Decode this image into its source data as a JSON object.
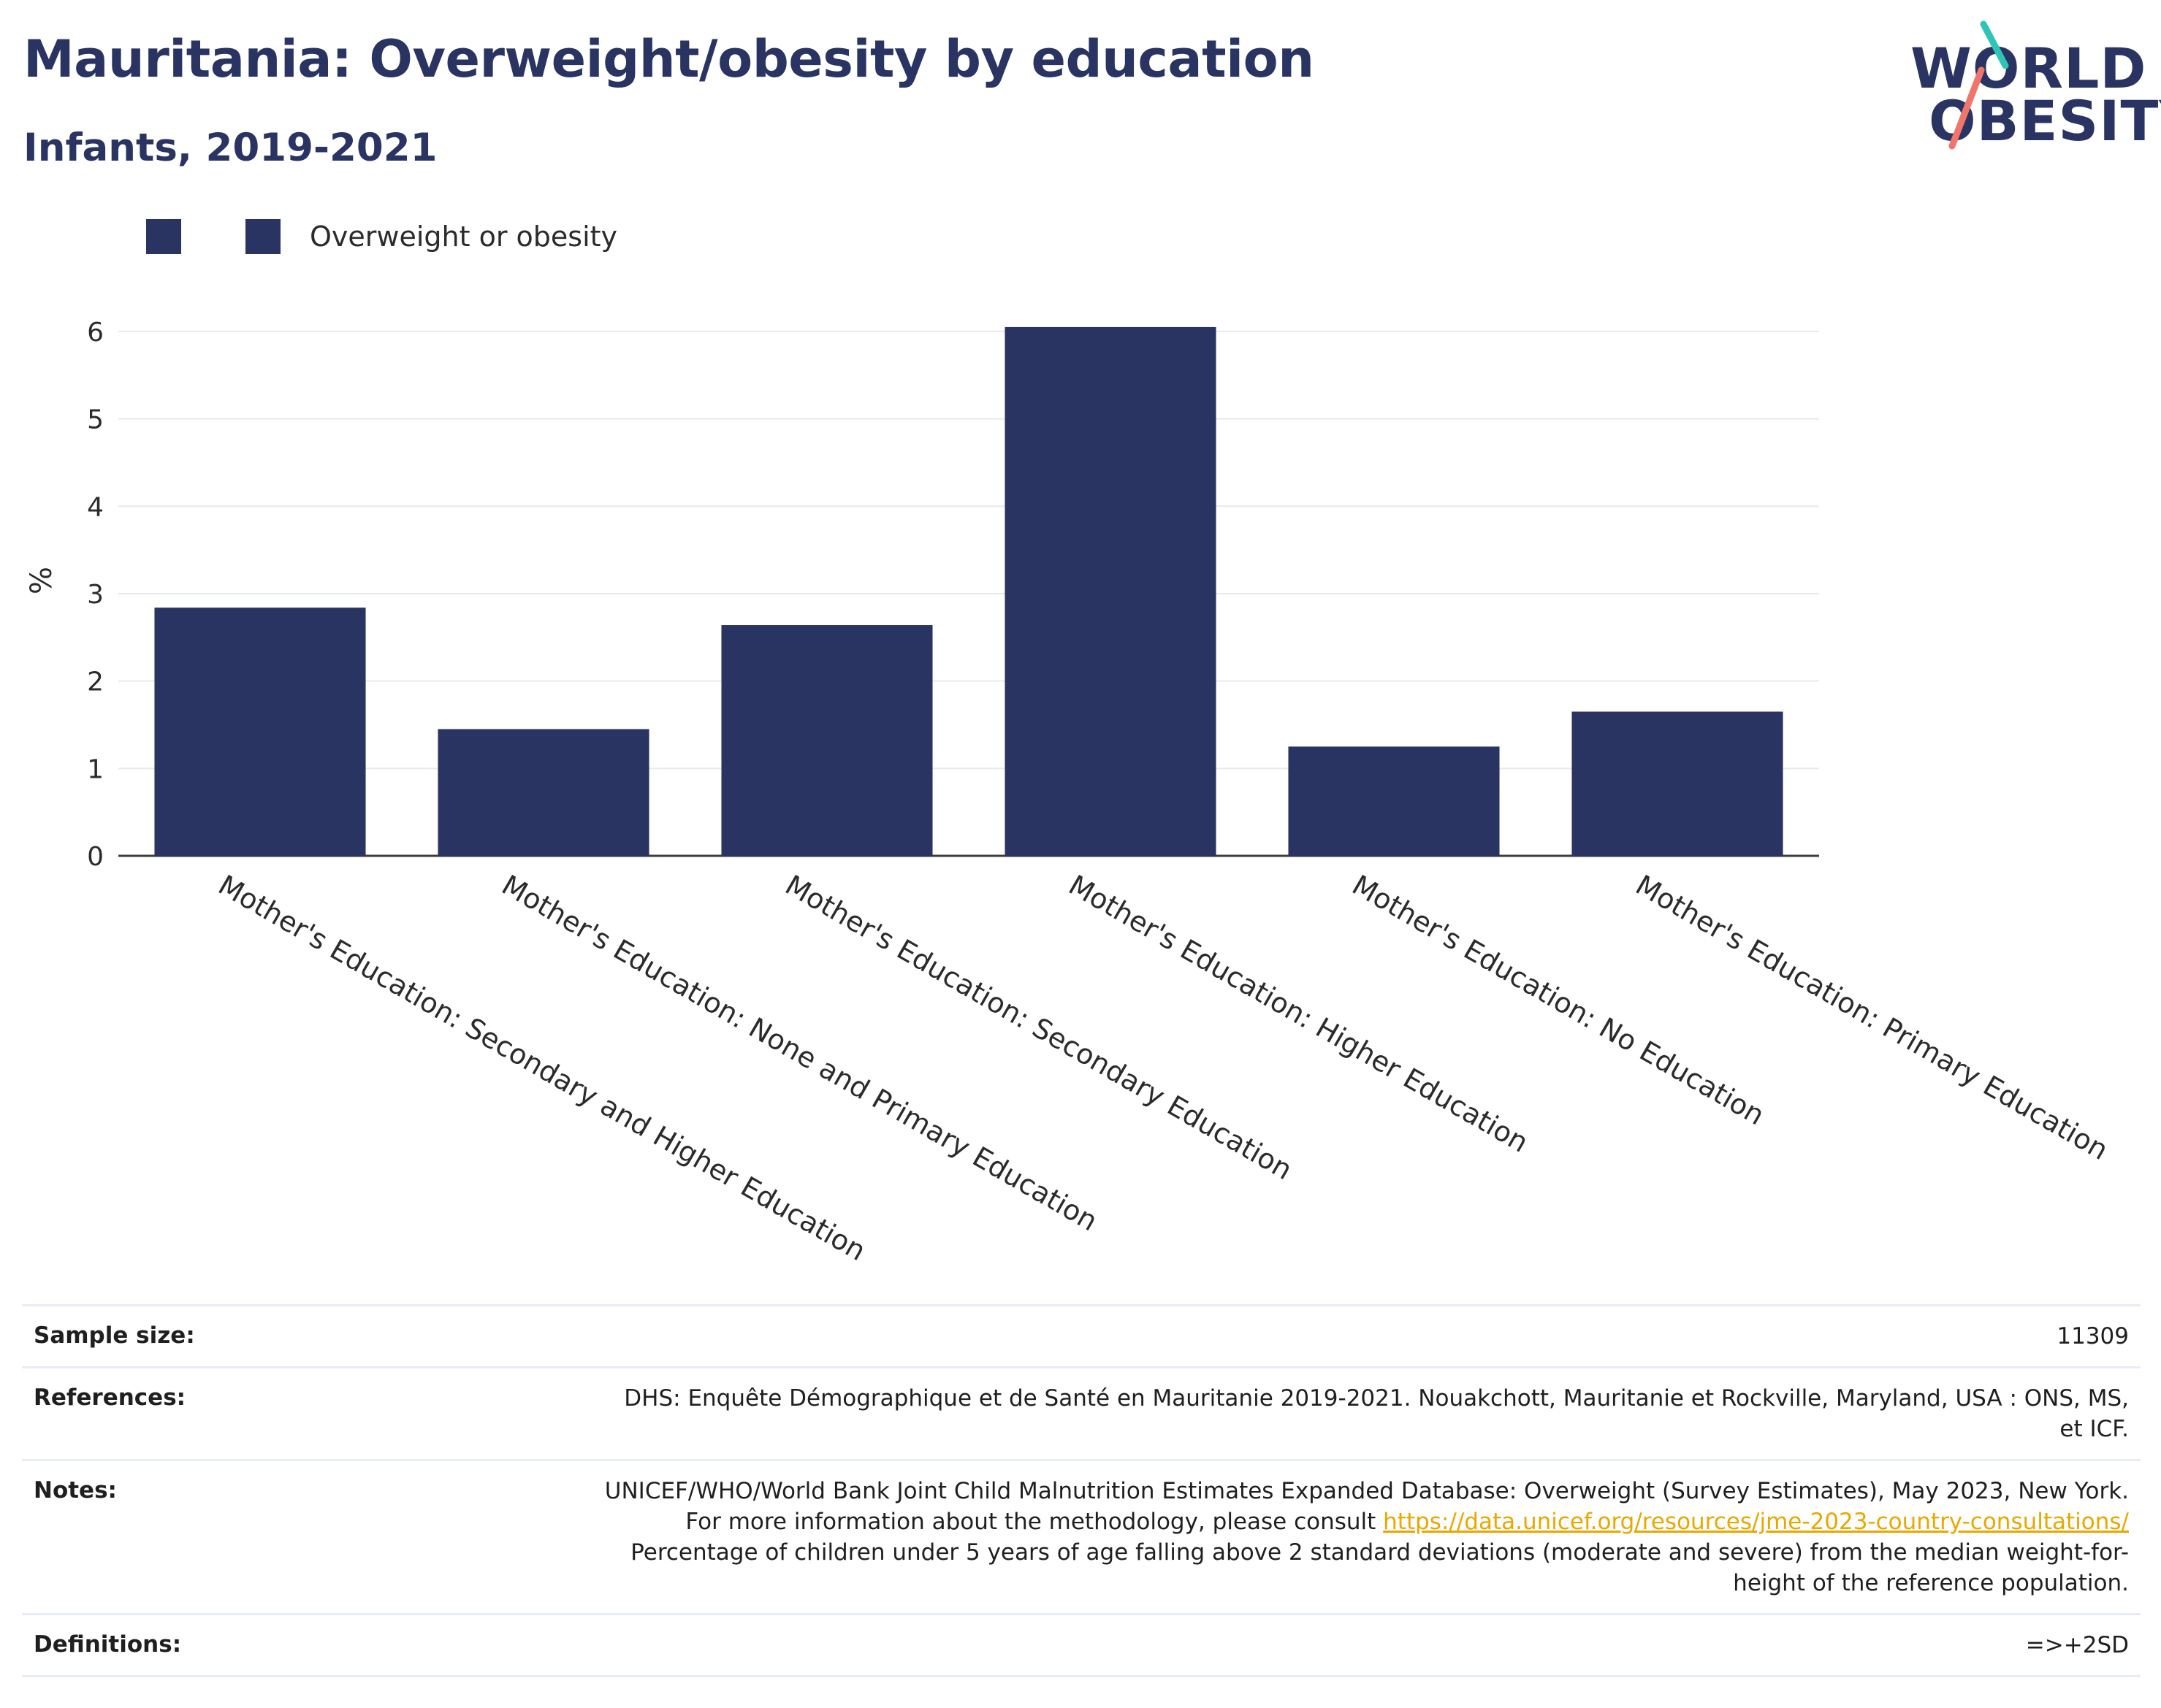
{
  "header": {
    "title": "Mauritania: Overweight/obesity by education",
    "subtitle": "Infants, 2019-2021"
  },
  "logo": {
    "line1": "WORLD",
    "line2": "OBESITY",
    "colors": {
      "navy": "#293462",
      "teal": "#2ec4b6",
      "coral": "#f0756a"
    }
  },
  "legend": {
    "items": [
      {
        "label": "",
        "color": "#293462"
      },
      {
        "label": "Overweight or obesity",
        "color": "#293462"
      }
    ]
  },
  "chart_data": {
    "type": "bar",
    "ylabel": "%",
    "xlabel": "",
    "ylim": [
      0,
      6.3
    ],
    "yticks": [
      0,
      1,
      2,
      3,
      4,
      5,
      6
    ],
    "grid": true,
    "legend_position": "top-left",
    "bar_color": "#293462",
    "categories": [
      "Mother's Education: Secondary and Higher Education",
      "Mother's Education: None and Primary Education",
      "Mother's Education: Secondary Education",
      "Mother's Education: Higher Education",
      "Mother's Education: No Education",
      "Mother's Education: Primary Education"
    ],
    "series": [
      {
        "name": "Overweight or obesity",
        "values": [
          2.84,
          1.45,
          2.64,
          6.05,
          1.25,
          1.65
        ]
      }
    ]
  },
  "info": {
    "sample_size_label": "Sample size:",
    "sample_size_value": "11309",
    "references_label": "References:",
    "references_value": "DHS: Enquête Démographique et de Santé en Mauritanie 2019-2021. Nouakchott, Mauritanie et Rockville, Maryland, USA : ONS, MS, et ICF.",
    "notes_label": "Notes:",
    "notes_text_1": "UNICEF/WHO/World Bank Joint Child Malnutrition Estimates Expanded Database: Overweight (Survey Estimates), May 2023, New York. For more information about the methodology, please consult ",
    "notes_link": "https://data.unicef.org/resources/jme-2023-country-consultations/",
    "notes_text_2": " Percentage of children under 5 years of age falling above 2 standard deviations (moderate and severe) from the median weight-for-height of the reference population.",
    "definitions_label": "Definitions:",
    "definitions_value": "=>+2SD"
  }
}
